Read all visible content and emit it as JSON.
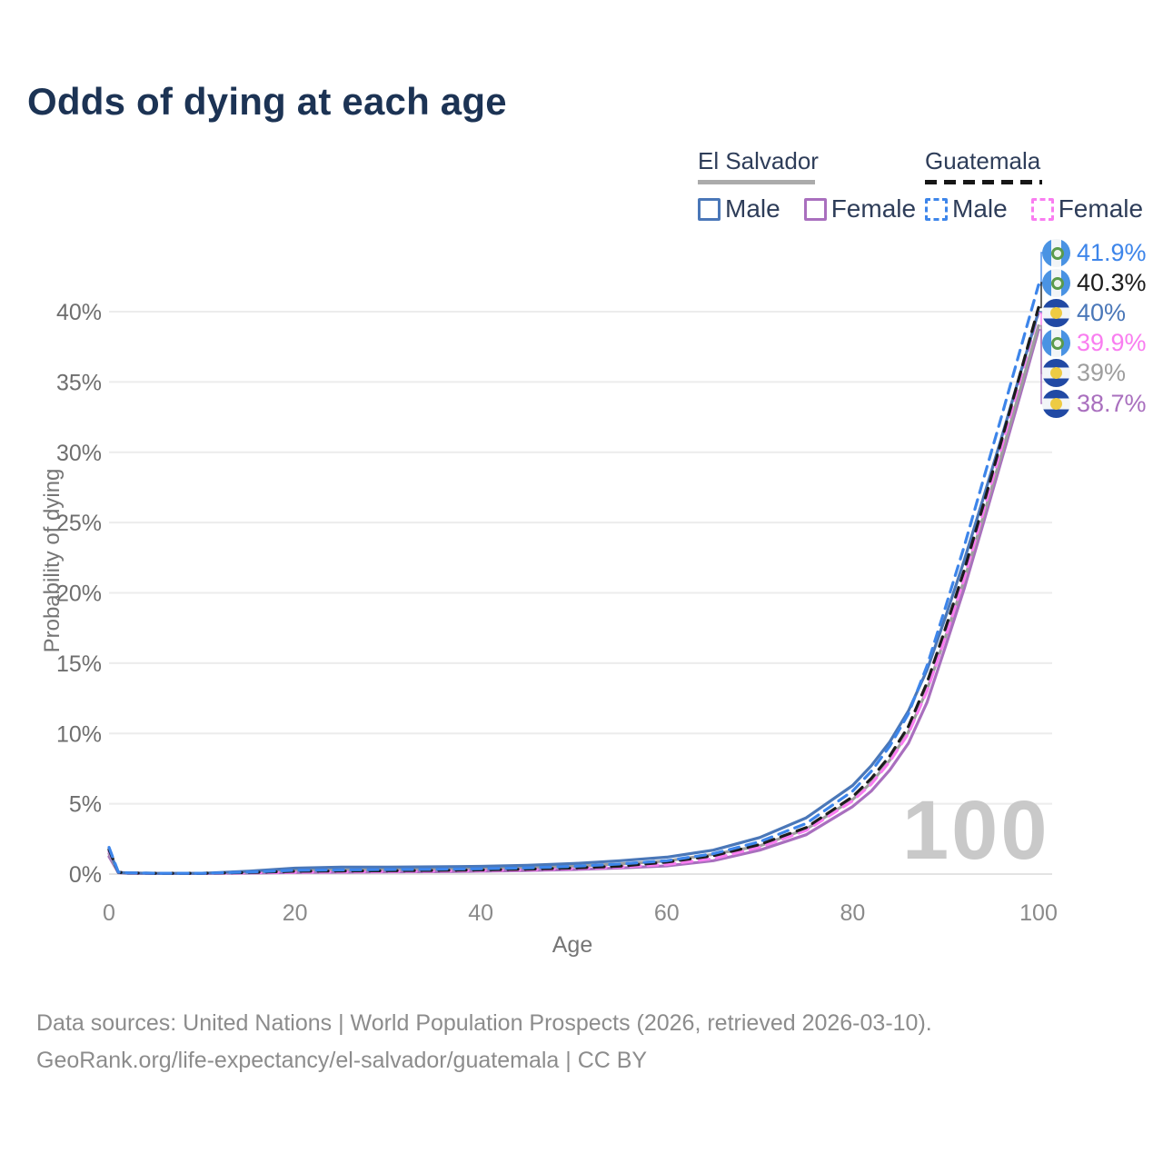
{
  "page_title": "Odds of dying at each age",
  "legend": {
    "groups": [
      {
        "name": "El Salvador",
        "line_style": "solid",
        "underline_color": "#ababab",
        "items": [
          {
            "label": "Male",
            "color": "#4a77b8",
            "dashed": false
          },
          {
            "label": "Female",
            "color": "#a96fbe",
            "dashed": false
          }
        ]
      },
      {
        "name": "Guatemala",
        "line_style": "dashed",
        "underline_color": "#161616",
        "items": [
          {
            "label": "Male",
            "color": "#3d85ea",
            "dashed": true
          },
          {
            "label": "Female",
            "color": "#f97df0",
            "dashed": true
          }
        ]
      }
    ]
  },
  "chart_data": {
    "type": "line",
    "title": "Odds of dying at each age",
    "xlabel": "Age",
    "ylabel": "Probability of dying",
    "xlim": [
      0,
      100
    ],
    "ylim": [
      0,
      43
    ],
    "x_ticks": [
      0,
      20,
      40,
      60,
      80,
      100
    ],
    "y_ticks": [
      {
        "value": 0,
        "label": "0%"
      },
      {
        "value": 5,
        "label": "5%"
      },
      {
        "value": 10,
        "label": "10%"
      },
      {
        "value": 15,
        "label": "15%"
      },
      {
        "value": 20,
        "label": "20%"
      },
      {
        "value": 25,
        "label": "25%"
      },
      {
        "value": 30,
        "label": "30%"
      },
      {
        "value": 35,
        "label": "35%"
      },
      {
        "value": 40,
        "label": "40%"
      }
    ],
    "grid": "horizontal",
    "legend_position": "top-right",
    "x": [
      0,
      1,
      2,
      5,
      10,
      15,
      20,
      25,
      30,
      35,
      40,
      45,
      50,
      55,
      60,
      65,
      70,
      75,
      80,
      82,
      84,
      86,
      88,
      90,
      92,
      94,
      96,
      98,
      100
    ],
    "series": [
      {
        "name": "Guatemala Male",
        "country": "Guatemala",
        "sex": "Male",
        "color": "#3d85ea",
        "dashed": true,
        "end_label": "41.9%",
        "flag": "guatemala",
        "values": [
          1.9,
          0.14,
          0.09,
          0.06,
          0.06,
          0.14,
          0.27,
          0.3,
          0.32,
          0.34,
          0.38,
          0.44,
          0.55,
          0.72,
          0.95,
          1.45,
          2.3,
          3.6,
          5.9,
          7.3,
          9.1,
          11.4,
          14.8,
          19.0,
          23.3,
          27.9,
          32.5,
          37.2,
          41.9
        ]
      },
      {
        "name": "Guatemala Both sexes",
        "country": "Guatemala",
        "sex": "Both",
        "color": "#1c1c1c",
        "dashed": true,
        "end_label": "40.3%",
        "flag": "guatemala",
        "values": [
          1.75,
          0.13,
          0.08,
          0.06,
          0.06,
          0.11,
          0.2,
          0.22,
          0.24,
          0.26,
          0.3,
          0.35,
          0.43,
          0.56,
          0.85,
          1.3,
          2.1,
          3.3,
          5.5,
          6.8,
          8.4,
          10.5,
          13.6,
          17.5,
          21.6,
          26.1,
          30.8,
          35.5,
          40.3
        ]
      },
      {
        "name": "El Salvador Male",
        "country": "El Salvador",
        "sex": "Male",
        "color": "#4a77b8",
        "dashed": false,
        "end_label": "40%",
        "flag": "el-salvador",
        "values": [
          1.7,
          0.12,
          0.08,
          0.05,
          0.05,
          0.2,
          0.42,
          0.5,
          0.5,
          0.52,
          0.55,
          0.62,
          0.75,
          0.95,
          1.2,
          1.7,
          2.6,
          4.0,
          6.3,
          7.7,
          9.4,
          11.6,
          14.5,
          18.3,
          22.3,
          26.6,
          31.0,
          35.5,
          40.0
        ]
      },
      {
        "name": "Guatemala Female",
        "country": "Guatemala",
        "sex": "Female",
        "color": "#f97df0",
        "dashed": true,
        "end_label": "39.9%",
        "flag": "guatemala",
        "values": [
          1.6,
          0.12,
          0.07,
          0.05,
          0.05,
          0.09,
          0.13,
          0.16,
          0.18,
          0.21,
          0.25,
          0.3,
          0.38,
          0.5,
          0.68,
          1.1,
          1.9,
          3.1,
          5.2,
          6.4,
          8.0,
          10.0,
          13.0,
          16.9,
          21.0,
          25.6,
          30.3,
          35.1,
          39.9
        ]
      },
      {
        "name": "El Salvador Both sexes",
        "country": "El Salvador",
        "sex": "Both",
        "color": "#9e9e9e",
        "dashed": false,
        "end_label": "39%",
        "flag": "el-salvador",
        "values": [
          1.45,
          0.11,
          0.07,
          0.05,
          0.05,
          0.13,
          0.27,
          0.3,
          0.32,
          0.35,
          0.4,
          0.46,
          0.56,
          0.72,
          0.93,
          1.4,
          2.0,
          3.2,
          5.3,
          6.5,
          8.1,
          10.1,
          13.1,
          16.9,
          20.9,
          25.3,
          29.8,
          34.4,
          39.0
        ]
      },
      {
        "name": "El Salvador Female",
        "country": "El Salvador",
        "sex": "Female",
        "color": "#a96fbe",
        "dashed": false,
        "end_label": "38.7%",
        "flag": "el-salvador",
        "values": [
          1.25,
          0.1,
          0.06,
          0.04,
          0.04,
          0.07,
          0.11,
          0.13,
          0.15,
          0.17,
          0.2,
          0.25,
          0.32,
          0.43,
          0.58,
          0.95,
          1.7,
          2.8,
          4.8,
          5.9,
          7.4,
          9.3,
          12.2,
          16.2,
          20.3,
          24.8,
          29.4,
          34.0,
          38.7
        ]
      }
    ]
  },
  "watermark": "100",
  "footer": {
    "line1": "Data sources: United Nations | World Population Prospects (2026, retrieved 2026-03-10).",
    "line2": "GeoRank.org/life-expectancy/el-salvador/guatemala | CC BY"
  }
}
